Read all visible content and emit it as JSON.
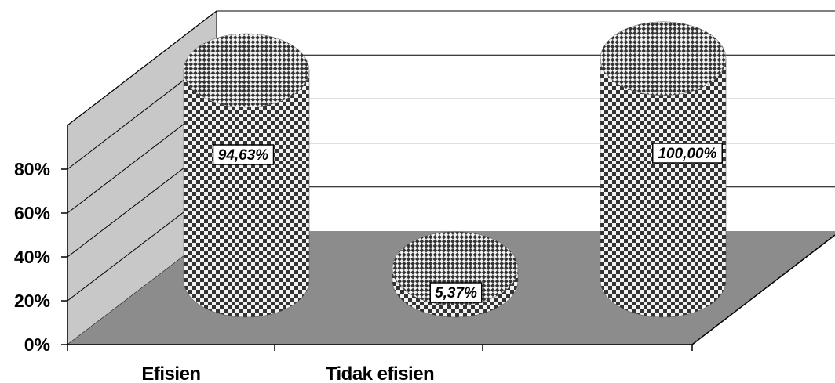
{
  "chart_data": {
    "type": "bar",
    "style": "3d-cylinder",
    "pattern": "checkerboard",
    "categories": [
      "Efisien",
      "Tidak efisien",
      ""
    ],
    "values": [
      94.63,
      5.37,
      100.0
    ],
    "data_labels": [
      "94,63%",
      "5,37%",
      "100,00%"
    ],
    "y_ticks": [
      "0%",
      "20%",
      "40%",
      "60%",
      "80%"
    ],
    "ylim": [
      0,
      100
    ],
    "grid": true,
    "legend": "none",
    "title": "",
    "xlabel": "",
    "ylabel": "",
    "colors": {
      "back_wall": "#ffffff",
      "side_wall": "#c8c8c8",
      "floor": "#8c8c8c",
      "pattern_dark": "#333333",
      "pattern_light": "#f2f2f2"
    }
  }
}
